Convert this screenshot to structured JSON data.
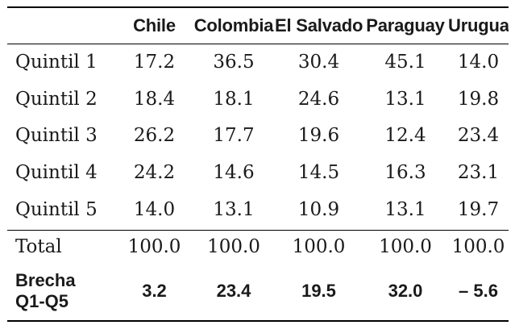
{
  "table": {
    "columns": [
      "",
      "Chile",
      "Colombia",
      "El Salvador",
      "Paraguay",
      "Uruguay"
    ],
    "rows": [
      {
        "label": "Quintil 1",
        "values": [
          "17.2",
          "36.5",
          "30.4",
          "45.1",
          "14.0"
        ]
      },
      {
        "label": "Quintil 2",
        "values": [
          "18.4",
          "18.1",
          "24.6",
          "13.1",
          "19.8"
        ]
      },
      {
        "label": "Quintil 3",
        "values": [
          "26.2",
          "17.7",
          "19.6",
          "12.4",
          "23.4"
        ]
      },
      {
        "label": "Quintil 4",
        "values": [
          "24.2",
          "14.6",
          "14.5",
          "16.3",
          "23.1"
        ]
      },
      {
        "label": "Quintil 5",
        "values": [
          "14.0",
          "13.1",
          "10.9",
          "13.1",
          "19.7"
        ]
      }
    ],
    "total": {
      "label": "Total",
      "values": [
        "100.0",
        "100.0",
        "100.0",
        "100.0",
        "100.0"
      ]
    },
    "gap": {
      "label_line1": "Brecha",
      "label_line2": "Q1-Q5",
      "values": [
        "3.2",
        "23.4",
        "19.5",
        "32.0",
        "– 5.6"
      ]
    }
  }
}
